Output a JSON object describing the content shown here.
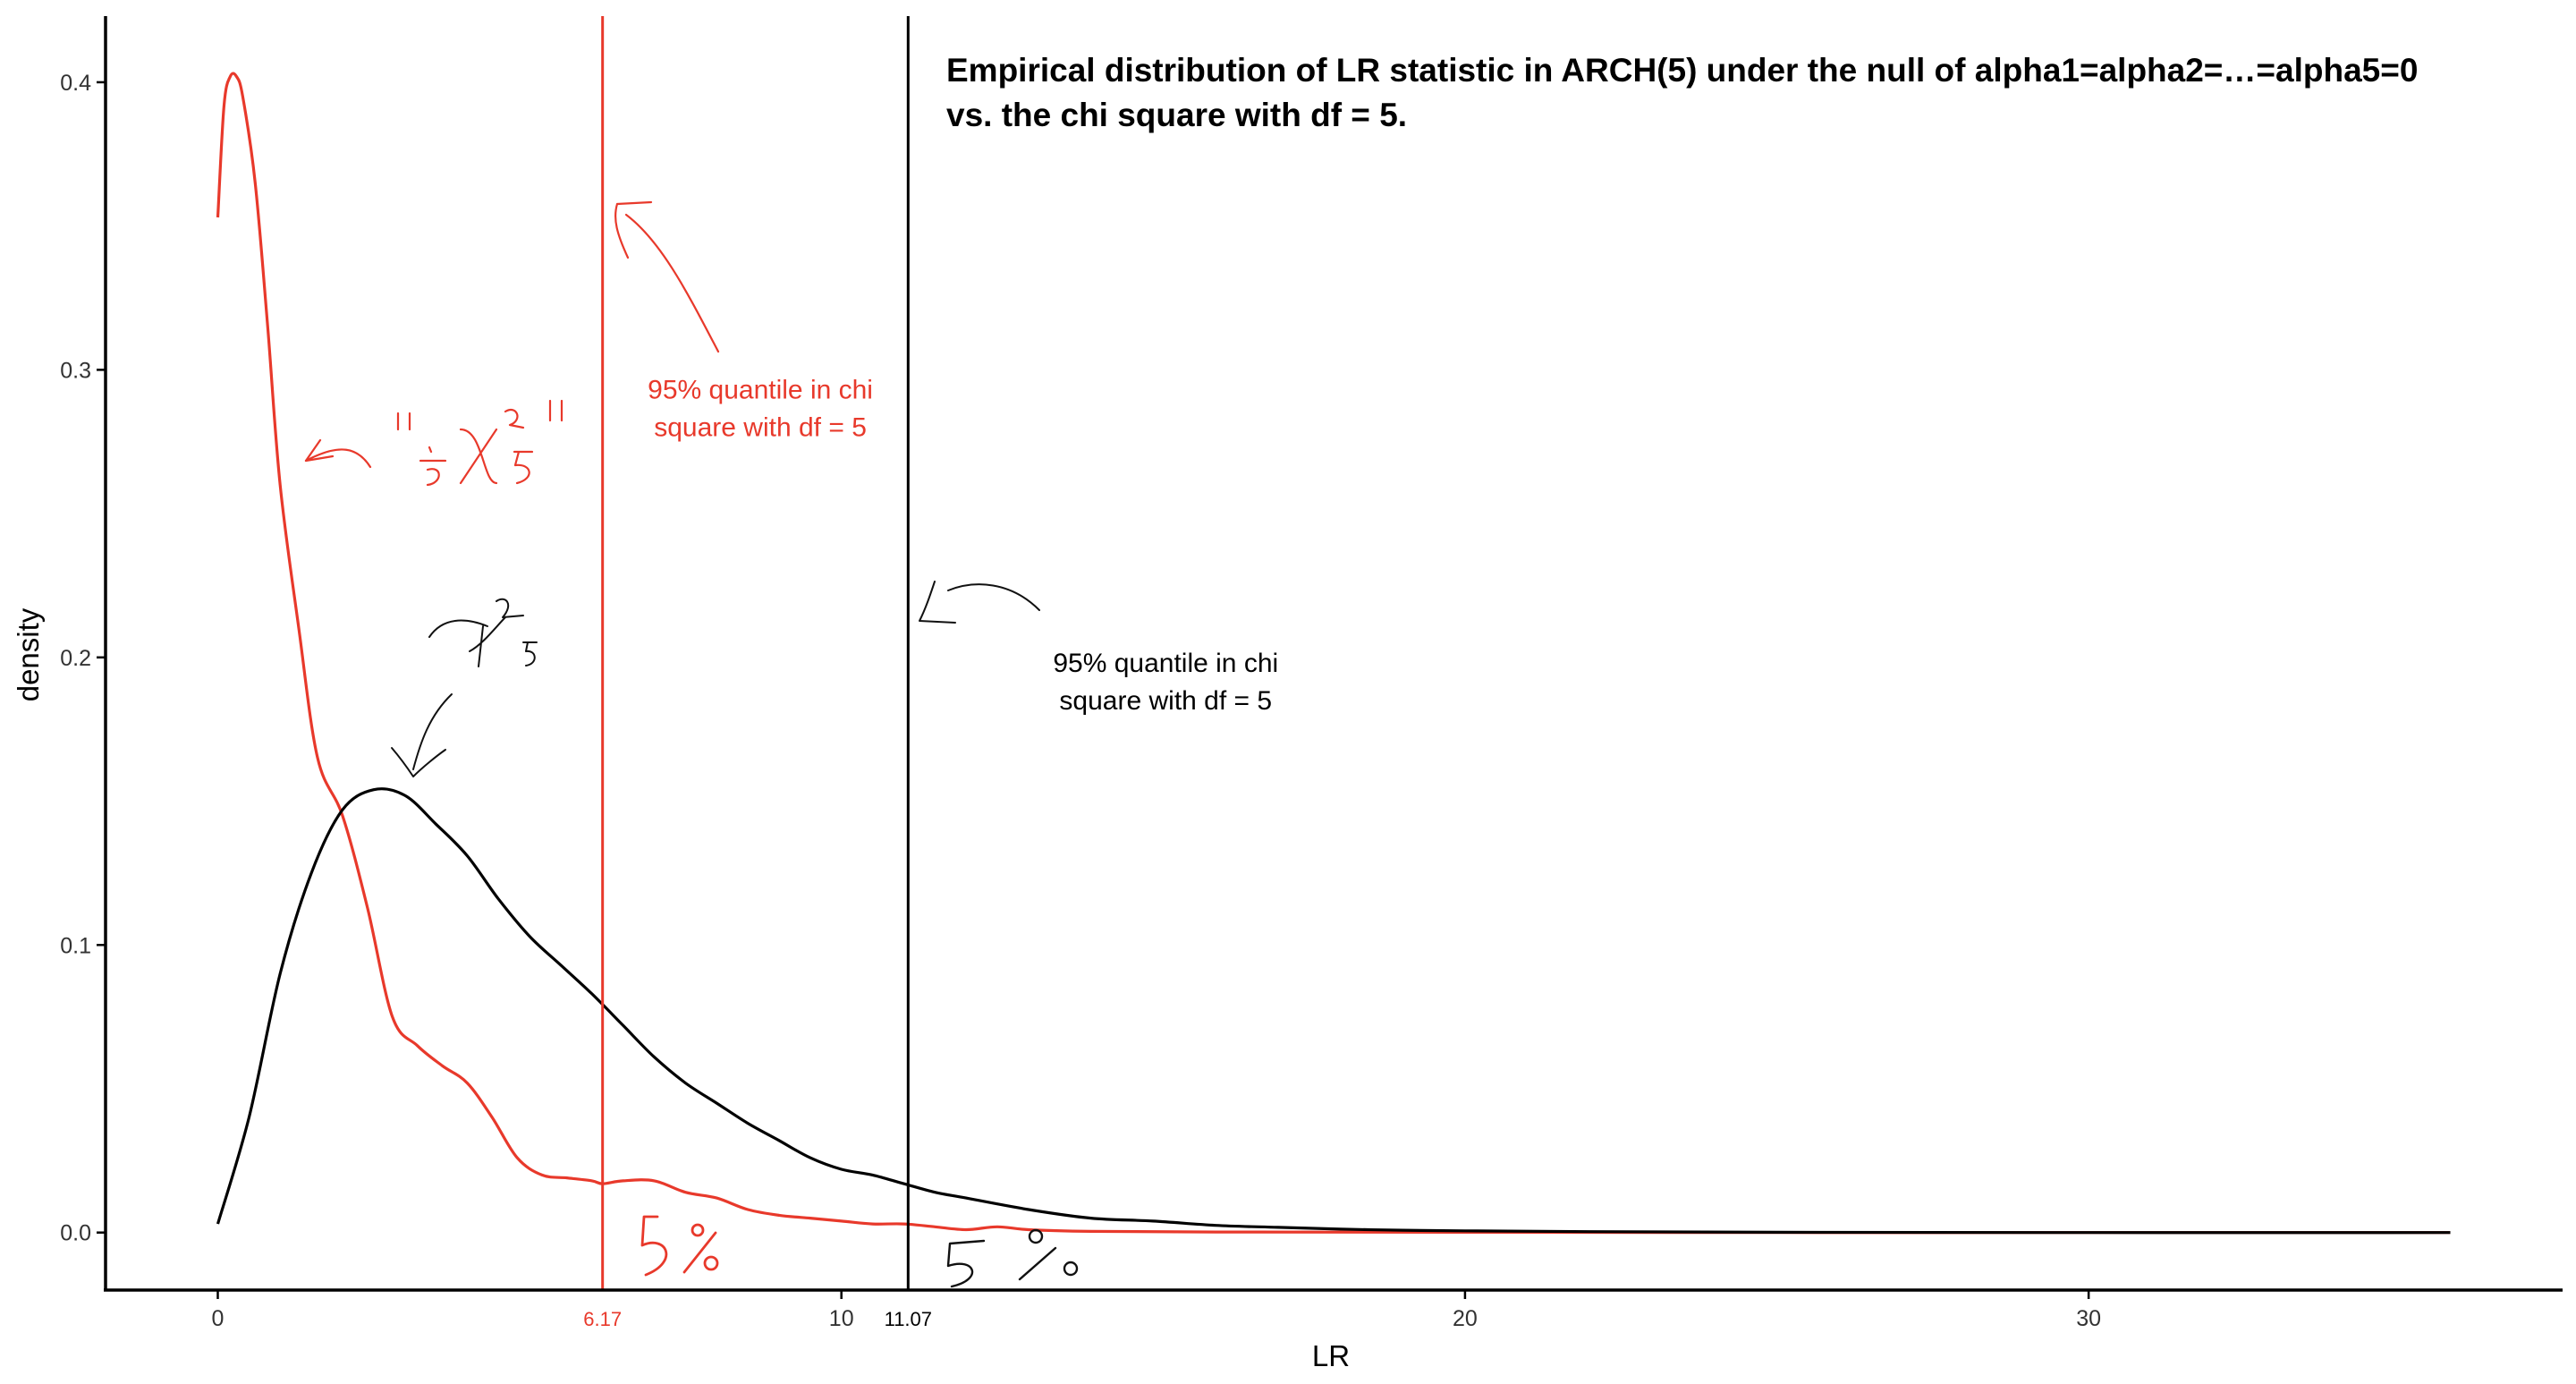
{
  "chart_data": {
    "type": "line",
    "title": "Empirical distribution of LR statistic in ARCH(5) under the null of alpha1=alpha2=…=alpha5=0",
    "subtitle": "vs. the chi square with df = 5.",
    "xlabel": "LR",
    "ylabel": "density",
    "xlim": [
      -1.8,
      37.6
    ],
    "ylim": [
      -0.02,
      0.423
    ],
    "x_ticks": [
      0,
      10,
      20,
      30
    ],
    "x_tick_labels": [
      "0",
      "10",
      "20",
      "30"
    ],
    "y_ticks": [
      0.0,
      0.1,
      0.2,
      0.3,
      0.4
    ],
    "y_tick_labels": [
      "0.0",
      "0.1",
      "0.2",
      "0.3",
      "0.4"
    ],
    "grid": false,
    "legend": "none",
    "series": [
      {
        "color": "#e8392b",
        "x": [
          0,
          0.1,
          0.2,
          0.3,
          0.4,
          0.6,
          0.8,
          1.0,
          1.3,
          1.6,
          2.0,
          2.4,
          2.8,
          3.2,
          3.6,
          4.0,
          4.4,
          4.8,
          5.2,
          5.6,
          6.0,
          6.17,
          6.5,
          7.0,
          7.5,
          8.0,
          8.5,
          9.0,
          9.5,
          10.0,
          10.5,
          11.0,
          11.5,
          12.0,
          12.5,
          13.0,
          14.0,
          16.0,
          20.0,
          25.0,
          30.0,
          35.8
        ],
        "y": [
          0.353,
          0.392,
          0.402,
          0.402,
          0.395,
          0.365,
          0.315,
          0.26,
          0.21,
          0.165,
          0.145,
          0.113,
          0.075,
          0.065,
          0.058,
          0.052,
          0.04,
          0.026,
          0.02,
          0.019,
          0.018,
          0.017,
          0.018,
          0.018,
          0.014,
          0.012,
          0.008,
          0.006,
          0.005,
          0.004,
          0.003,
          0.003,
          0.002,
          0.001,
          0.002,
          0.001,
          0.0004,
          0.0002,
          0.0001,
          0.0,
          0.0,
          0.0
        ]
      },
      {
        "color": "#000000",
        "x": [
          0,
          0.5,
          1.0,
          1.5,
          2.0,
          2.5,
          3.0,
          3.5,
          4.0,
          4.5,
          5.0,
          5.5,
          6.0,
          6.5,
          7.0,
          7.5,
          8.0,
          8.5,
          9.0,
          9.5,
          10.0,
          10.5,
          11.0,
          11.5,
          12.0,
          13.0,
          14.0,
          15.0,
          16.0,
          17.0,
          18.0,
          19.0,
          20.0,
          22.0,
          25.0,
          30.0,
          35.8
        ],
        "y": [
          0.003,
          0.04,
          0.09,
          0.125,
          0.147,
          0.154,
          0.152,
          0.142,
          0.131,
          0.116,
          0.103,
          0.093,
          0.083,
          0.072,
          0.061,
          0.052,
          0.045,
          0.038,
          0.032,
          0.026,
          0.022,
          0.02,
          0.017,
          0.014,
          0.012,
          0.008,
          0.005,
          0.004,
          0.0025,
          0.0018,
          0.0012,
          0.0008,
          0.0006,
          0.0003,
          0.0001,
          0.0,
          0.0
        ]
      }
    ],
    "vlines": [
      {
        "x": 6.17,
        "label": "6.17",
        "color": "#e8392b"
      },
      {
        "x": 11.07,
        "label": "11.07",
        "color": "#000000"
      }
    ],
    "annotations": [
      {
        "lines": [
          "95% quantile in chi",
          "square with df = 5"
        ],
        "color": "#e8392b",
        "x": 8.7,
        "y": 0.29
      },
      {
        "lines": [
          "95% quantile in chi",
          "square with df = 5"
        ],
        "color": "#000000",
        "x": 15.2,
        "y": 0.195
      }
    ]
  }
}
